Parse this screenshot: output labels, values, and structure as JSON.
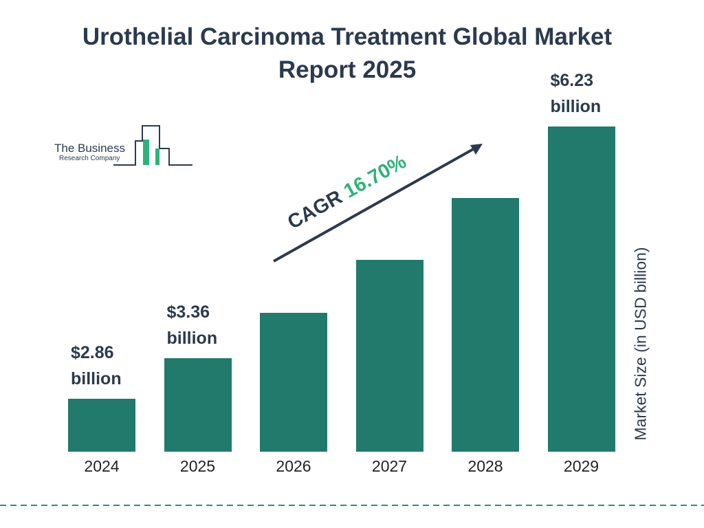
{
  "chart_data": {
    "type": "bar",
    "title": "Urothelial Carcinoma Treatment Global Market Report 2025",
    "categories": [
      "2024",
      "2025",
      "2026",
      "2027",
      "2028",
      "2029"
    ],
    "values": [
      2.86,
      3.36,
      3.92,
      4.58,
      5.34,
      6.23
    ],
    "value_labels": [
      "$2.86 billion",
      "$3.36 billion",
      null,
      null,
      null,
      "$6.23 billion"
    ],
    "color": "#217a6b",
    "ylim": [
      2.2,
      6.23
    ],
    "y_axis_label": "Market Size (in USD billion)",
    "annotation": {
      "label": "CAGR",
      "value": "16.70%"
    }
  },
  "logo": {
    "line1": "The Business",
    "line2": "Research Company"
  }
}
